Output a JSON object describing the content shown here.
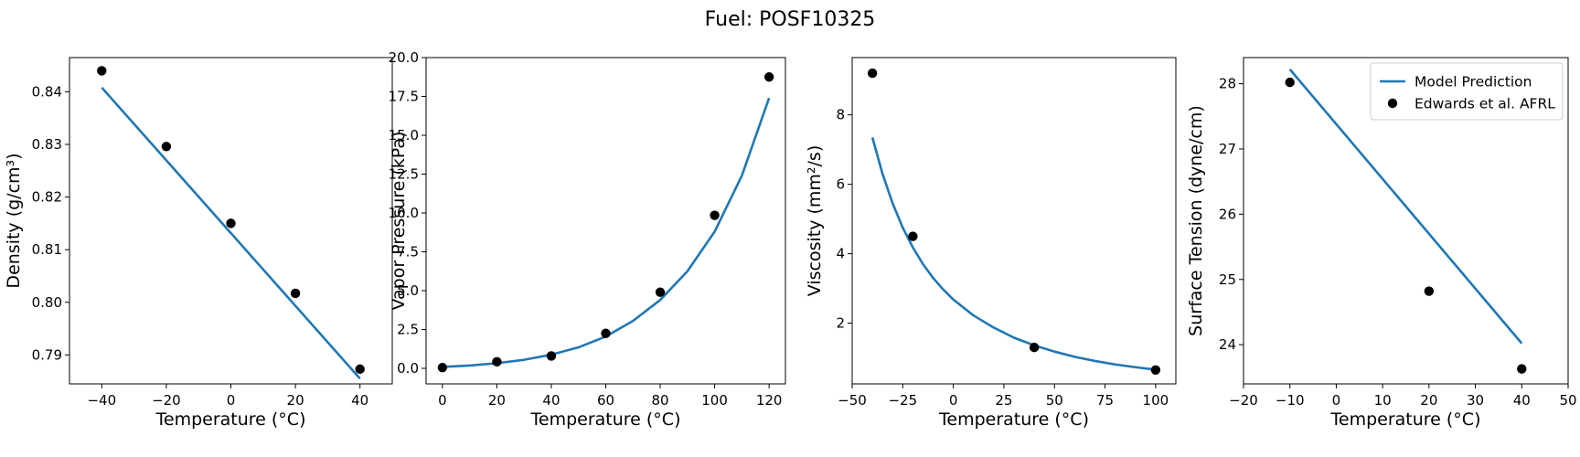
{
  "figure": {
    "title": "Fuel: POSF10325"
  },
  "colors": {
    "model": "#1f77b4",
    "observed": "#000000"
  },
  "legend": {
    "placement": "top-right",
    "panel": 3,
    "entries": [
      {
        "label": "Model Prediction",
        "kind": "line",
        "color": "#1f77b4"
      },
      {
        "label": "Edwards et al. AFRL",
        "kind": "marker",
        "color": "#000000"
      }
    ]
  },
  "chart_data": [
    {
      "type": "line",
      "xlabel": "Temperature (°C)",
      "ylabel": "Density (g/cm³)",
      "xlim": [
        -50,
        50
      ],
      "ylim": [
        0.7845,
        0.8465
      ],
      "xticks": [
        -40,
        -20,
        0,
        20,
        40
      ],
      "xtick_labels": [
        "−40",
        "−20",
        "0",
        "20",
        "40"
      ],
      "yticks": [
        0.79,
        0.8,
        0.81,
        0.82,
        0.83,
        0.84
      ],
      "ytick_labels": [
        "0.79",
        "0.80",
        "0.81",
        "0.82",
        "0.83",
        "0.84"
      ],
      "grid": false,
      "model": {
        "x": [
          -40,
          40
        ],
        "y": [
          0.8408,
          0.7855
        ]
      },
      "observed": {
        "x": [
          -40,
          -20,
          0,
          20,
          40
        ],
        "y": [
          0.844,
          0.8296,
          0.815,
          0.8017,
          0.7873
        ]
      }
    },
    {
      "type": "line",
      "xlabel": "Temperature (°C)",
      "ylabel": "Vapor Pressure (kPa)",
      "xlim": [
        -6,
        126
      ],
      "ylim": [
        -1.0,
        20.0
      ],
      "xticks": [
        0,
        20,
        40,
        60,
        80,
        100,
        120
      ],
      "xtick_labels": [
        "0",
        "20",
        "40",
        "60",
        "80",
        "100",
        "120"
      ],
      "yticks": [
        0.0,
        2.5,
        5.0,
        7.5,
        10.0,
        12.5,
        15.0,
        17.5,
        20.0
      ],
      "ytick_labels": [
        "0.0",
        "2.5",
        "5.0",
        "7.5",
        "10.0",
        "12.5",
        "15.0",
        "17.5",
        "20.0"
      ],
      "grid": false,
      "model": {
        "x": [
          0,
          10,
          20,
          30,
          40,
          50,
          60,
          70,
          80,
          90,
          100,
          110,
          120
        ],
        "y": [
          0.09,
          0.18,
          0.33,
          0.55,
          0.88,
          1.35,
          2.05,
          3.05,
          4.4,
          6.25,
          8.8,
          12.4,
          17.4
        ]
      },
      "observed": {
        "x": [
          0,
          20,
          40,
          60,
          80,
          100,
          120
        ],
        "y": [
          0.05,
          0.42,
          0.8,
          2.25,
          4.9,
          9.85,
          18.75
        ]
      }
    },
    {
      "type": "line",
      "xlabel": "Temperature (°C)",
      "ylabel": "Viscosity (mm²/s)",
      "xlim": [
        -50,
        110
      ],
      "ylim": [
        0.25,
        9.65
      ],
      "xticks": [
        -50,
        -25,
        0,
        25,
        50,
        75,
        100
      ],
      "xtick_labels": [
        "−50",
        "−25",
        "0",
        "25",
        "50",
        "75",
        "100"
      ],
      "yticks": [
        2,
        4,
        6,
        8
      ],
      "ytick_labels": [
        "2",
        "4",
        "6",
        "8"
      ],
      "grid": false,
      "model": {
        "x": [
          -40,
          -35,
          -30,
          -25,
          -20,
          -15,
          -10,
          -5,
          0,
          10,
          20,
          30,
          40,
          50,
          60,
          70,
          80,
          90,
          100
        ],
        "y": [
          7.35,
          6.3,
          5.45,
          4.75,
          4.18,
          3.7,
          3.3,
          2.97,
          2.68,
          2.22,
          1.87,
          1.58,
          1.36,
          1.18,
          1.03,
          0.91,
          0.81,
          0.73,
          0.66
        ]
      },
      "observed": {
        "x": [
          -40,
          -20,
          40,
          100
        ],
        "y": [
          9.2,
          4.5,
          1.3,
          0.65
        ]
      }
    },
    {
      "type": "line",
      "xlabel": "Temperature (°C)",
      "ylabel": "Surface Tension (dyne/cm)",
      "xlim": [
        -20,
        50
      ],
      "ylim": [
        23.4,
        28.4
      ],
      "xticks": [
        -20,
        -10,
        0,
        10,
        20,
        30,
        40,
        50
      ],
      "xtick_labels": [
        "−20",
        "−10",
        "0",
        "10",
        "20",
        "30",
        "40",
        "50"
      ],
      "yticks": [
        24,
        25,
        26,
        27,
        28
      ],
      "ytick_labels": [
        "24",
        "25",
        "26",
        "27",
        "28"
      ],
      "grid": false,
      "model": {
        "x": [
          -10,
          40
        ],
        "y": [
          28.22,
          24.02
        ]
      },
      "observed": {
        "x": [
          -10,
          20,
          40
        ],
        "y": [
          28.02,
          24.82,
          23.63
        ]
      }
    }
  ]
}
